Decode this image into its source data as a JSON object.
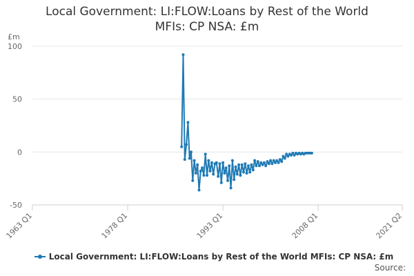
{
  "title_lines": [
    "Local Government: LI:FLOW:Loans by Rest of the World",
    "MFIs: CP NSA: £m"
  ],
  "source_label": "Source:",
  "chart_data": {
    "type": "line",
    "title": "Local Government: LI:FLOW:Loans by Rest of the World MFIs: CP NSA: £m",
    "ylabel": "£m",
    "xlabel": "",
    "y_ticks": [
      "100",
      "50",
      "0",
      "-50"
    ],
    "x_ticks": [
      "1963 Q1",
      "1978 Q1",
      "1993 Q1",
      "2008 Q1",
      "2021 Q2"
    ],
    "x_tick_values": [
      1963.0,
      1978.0,
      1993.0,
      2008.0,
      2021.25
    ],
    "xlim": [
      1963.0,
      2021.25
    ],
    "ylim": [
      -50,
      100
    ],
    "grid": true,
    "legend_position": "bottom",
    "color": "#1f7ab4",
    "series": [
      {
        "name": "Local Government: LI:FLOW:Loans by Rest of the World MFIs: CP NSA: £m",
        "x": [
          1986.5,
          1986.75,
          1987.0,
          1987.25,
          1987.5,
          1987.75,
          1988.0,
          1988.25,
          1988.5,
          1988.75,
          1989.0,
          1989.25,
          1989.5,
          1989.75,
          1990.0,
          1990.25,
          1990.5,
          1990.75,
          1991.0,
          1991.25,
          1991.5,
          1991.75,
          1992.0,
          1992.25,
          1992.5,
          1992.75,
          1993.0,
          1993.25,
          1993.5,
          1993.75,
          1994.0,
          1994.25,
          1994.5,
          1994.75,
          1995.0,
          1995.25,
          1995.5,
          1995.75,
          1996.0,
          1996.25,
          1996.5,
          1996.75,
          1997.0,
          1997.25,
          1997.5,
          1997.75,
          1998.0,
          1998.25,
          1998.5,
          1998.75,
          1999.0,
          1999.25,
          1999.5,
          1999.75,
          2000.0,
          2000.25,
          2000.5,
          2000.75,
          2001.0,
          2001.25,
          2001.5,
          2001.75,
          2002.0,
          2002.25,
          2002.5,
          2002.75,
          2003.0,
          2003.25,
          2003.5,
          2003.75,
          2004.0,
          2004.25,
          2004.5,
          2004.75,
          2005.0,
          2005.25,
          2005.5,
          2005.75,
          2006.0,
          2006.25,
          2006.5,
          2006.75,
          2007.0
        ],
        "values": [
          5,
          92,
          -7,
          7,
          28,
          -6,
          0,
          -27,
          -8,
          -20,
          -12,
          -36,
          -18,
          -15,
          -22,
          -2,
          -22,
          -8,
          -18,
          -10,
          -21,
          -11,
          -10,
          -23,
          -11,
          -29,
          -10,
          -20,
          -15,
          -27,
          -13,
          -34,
          -8,
          -26,
          -14,
          -21,
          -12,
          -22,
          -12,
          -19,
          -11,
          -20,
          -13,
          -19,
          -12,
          -17,
          -8,
          -13,
          -9,
          -13,
          -10,
          -12,
          -10,
          -13,
          -9,
          -11,
          -8,
          -11,
          -8,
          -10,
          -8,
          -10,
          -7,
          -9,
          -4,
          -6,
          -2,
          -4,
          -2,
          -3,
          -1,
          -3,
          -1,
          -2,
          -1,
          -2,
          -1,
          -2,
          -1,
          -1,
          -1,
          -1,
          -1
        ]
      }
    ]
  }
}
